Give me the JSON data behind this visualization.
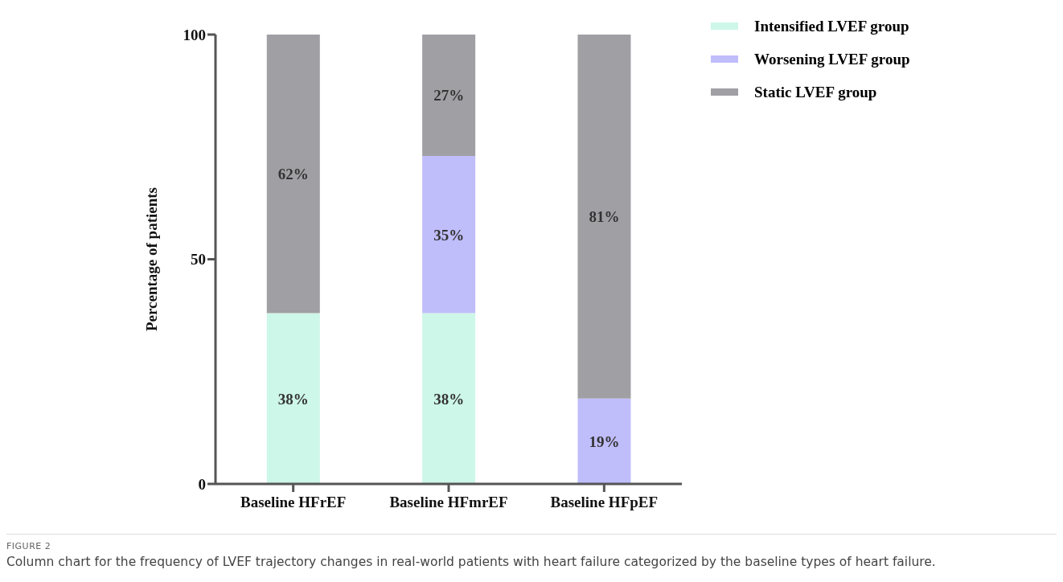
{
  "chart_data": {
    "type": "bar",
    "stacked": true,
    "ylabel": "Percentage of patients",
    "categories": [
      "Baseline HFrEF",
      "Baseline HFmrEF",
      "Baseline HFpEF"
    ],
    "series": [
      {
        "name": "Intensified LVEF group",
        "color": "#cdf7e8",
        "values": [
          38,
          38,
          null
        ],
        "value_labels": [
          "38%",
          "38%",
          null
        ]
      },
      {
        "name": "Worsening LVEF group",
        "color": "#c0bdfb",
        "values": [
          null,
          35,
          19
        ],
        "value_labels": [
          null,
          "35%",
          "19%"
        ]
      },
      {
        "name": "Static LVEF group",
        "color": "#a09fa4",
        "values": [
          62,
          27,
          81
        ],
        "value_labels": [
          "62%",
          "27%",
          "81%"
        ]
      }
    ],
    "ylim": [
      0,
      100
    ],
    "yticks": [
      0,
      50,
      100
    ],
    "grid": false,
    "legend": "top right",
    "annotations": [
      "FIGURE 2",
      "Column chart for the frequency of LVEF trajectory changes in real-world patients with heart failure categorized by the baseline types of heart failure."
    ]
  }
}
